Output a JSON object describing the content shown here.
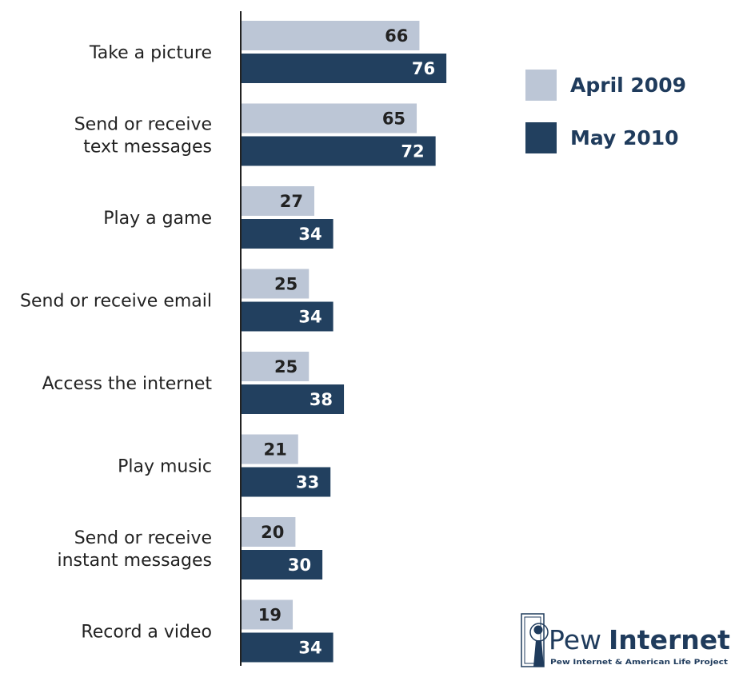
{
  "chart_data": {
    "type": "bar",
    "orientation": "horizontal",
    "categories": [
      [
        "Take a picture"
      ],
      [
        "Send or receive",
        "text messages"
      ],
      [
        "Play a game"
      ],
      [
        "Send or receive email"
      ],
      [
        "Access the internet"
      ],
      [
        "Play music"
      ],
      [
        "Send or receive",
        "instant messages"
      ],
      [
        "Record a video"
      ]
    ],
    "series": [
      {
        "name": "April 2009",
        "values": [
          66,
          65,
          27,
          25,
          25,
          21,
          20,
          19
        ],
        "color": "#bcc6d6",
        "label_color": "#222222"
      },
      {
        "name": "May 2010",
        "values": [
          76,
          72,
          34,
          34,
          38,
          33,
          30,
          34
        ],
        "color": "#22405f",
        "label_color": "#ffffff"
      }
    ],
    "title": "",
    "xlabel": "",
    "ylabel": "",
    "xlim": [
      0,
      100
    ],
    "grid": false,
    "legend_position": "top-right"
  },
  "logo": {
    "name": "Pew",
    "name_bold": "Internet",
    "subtitle": "Pew Internet & American Life Project"
  }
}
